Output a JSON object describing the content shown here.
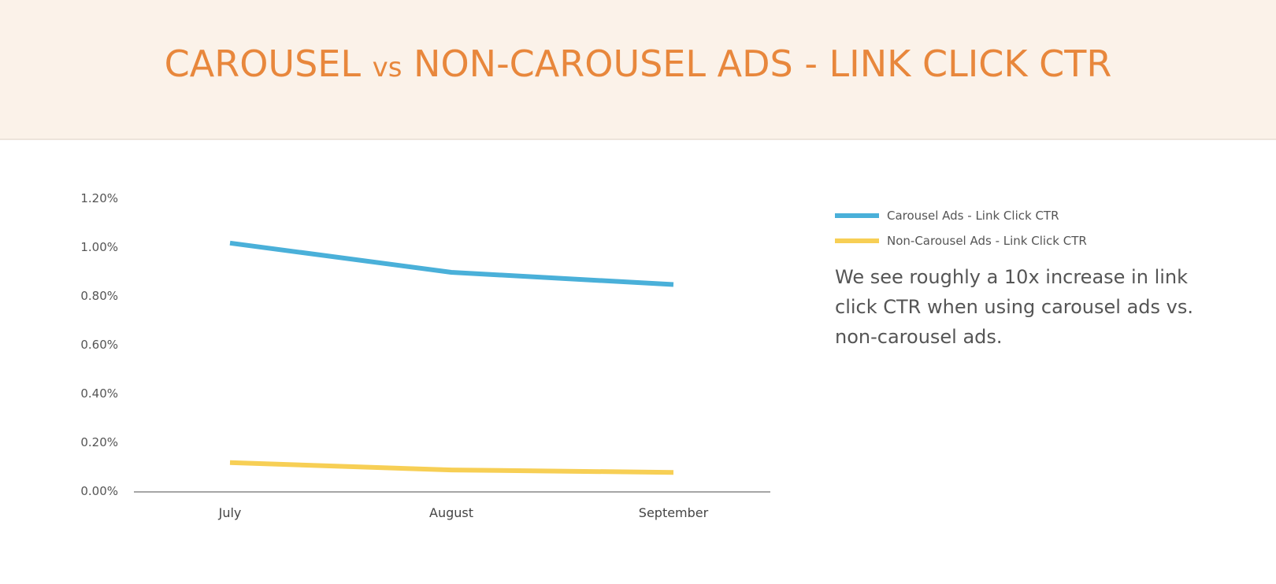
{
  "header": {
    "title_part1": "CAROUSEL ",
    "title_vs": "vs",
    "title_part2": " NON-CAROUSEL ADS - LINK CLICK CTR"
  },
  "colors": {
    "header_bg": "#fbf2e9",
    "title": "#e8873c",
    "carousel": "#4ab0d9",
    "non_carousel": "#f7cf55",
    "axis": "#888888"
  },
  "legend": {
    "items": [
      {
        "label": "Carousel Ads - Link Click CTR",
        "color": "#4ab0d9"
      },
      {
        "label": "Non-Carousel Ads - Link Click CTR",
        "color": "#f7cf55"
      }
    ]
  },
  "note": "We see roughly a 10x increase in link click CTR when using carousel ads vs. non-carousel ads.",
  "chart_data": {
    "type": "line",
    "title": "CAROUSEL vs NON-CAROUSEL ADS - LINK CLICK CTR",
    "xlabel": "",
    "ylabel": "",
    "categories": [
      "July",
      "August",
      "September"
    ],
    "yticks": [
      "0.00%",
      "0.20%",
      "0.40%",
      "0.60%",
      "0.80%",
      "1.00%",
      "1.20%"
    ],
    "ylim": [
      0,
      1.2
    ],
    "grid": false,
    "legend_position": "right",
    "series": [
      {
        "name": "Carousel Ads - Link Click CTR",
        "values": [
          1.02,
          0.9,
          0.85
        ],
        "unit": "%"
      },
      {
        "name": "Non-Carousel Ads - Link Click CTR",
        "values": [
          0.12,
          0.09,
          0.08
        ],
        "unit": "%"
      }
    ]
  }
}
